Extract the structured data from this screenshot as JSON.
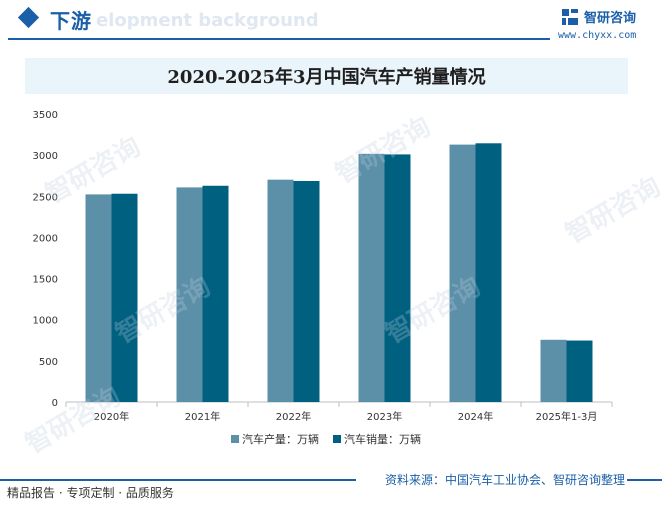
{
  "header": {
    "section_title": "下游",
    "section_subtitle": "elopment background"
  },
  "brand": {
    "name": "智研咨询",
    "url": "www.chyxx.com",
    "watermark": "智研咨询"
  },
  "colors": {
    "accent": "#1a5fa8",
    "production": "#5b90a8",
    "sales": "#006080",
    "title_band": "#eaf4fb"
  },
  "chart_data": {
    "type": "bar",
    "title": "2020-2025年3月中国汽车产销量情况",
    "categories": [
      "2020年",
      "2021年",
      "2022年",
      "2023年",
      "2024年",
      "2025年1-3月"
    ],
    "series": [
      {
        "name": "汽车产量：万辆",
        "values": [
          2523,
          2608,
          2702,
          3016,
          3128,
          756
        ]
      },
      {
        "name": "汽车销量：万辆",
        "values": [
          2531,
          2628,
          2686,
          3009,
          3144,
          747
        ]
      }
    ],
    "y_ticks": [
      "0",
      "500",
      "1000",
      "1500",
      "2000",
      "2500",
      "3000",
      "3500"
    ],
    "ylim": [
      0,
      3500
    ],
    "xlabel": "",
    "ylabel": "",
    "grid": false,
    "legend": "bottom-center"
  },
  "footer": {
    "tagline": "精品报告 · 专项定制 · 品质服务",
    "source": "资料来源：中国汽车工业协会、智研咨询整理"
  }
}
